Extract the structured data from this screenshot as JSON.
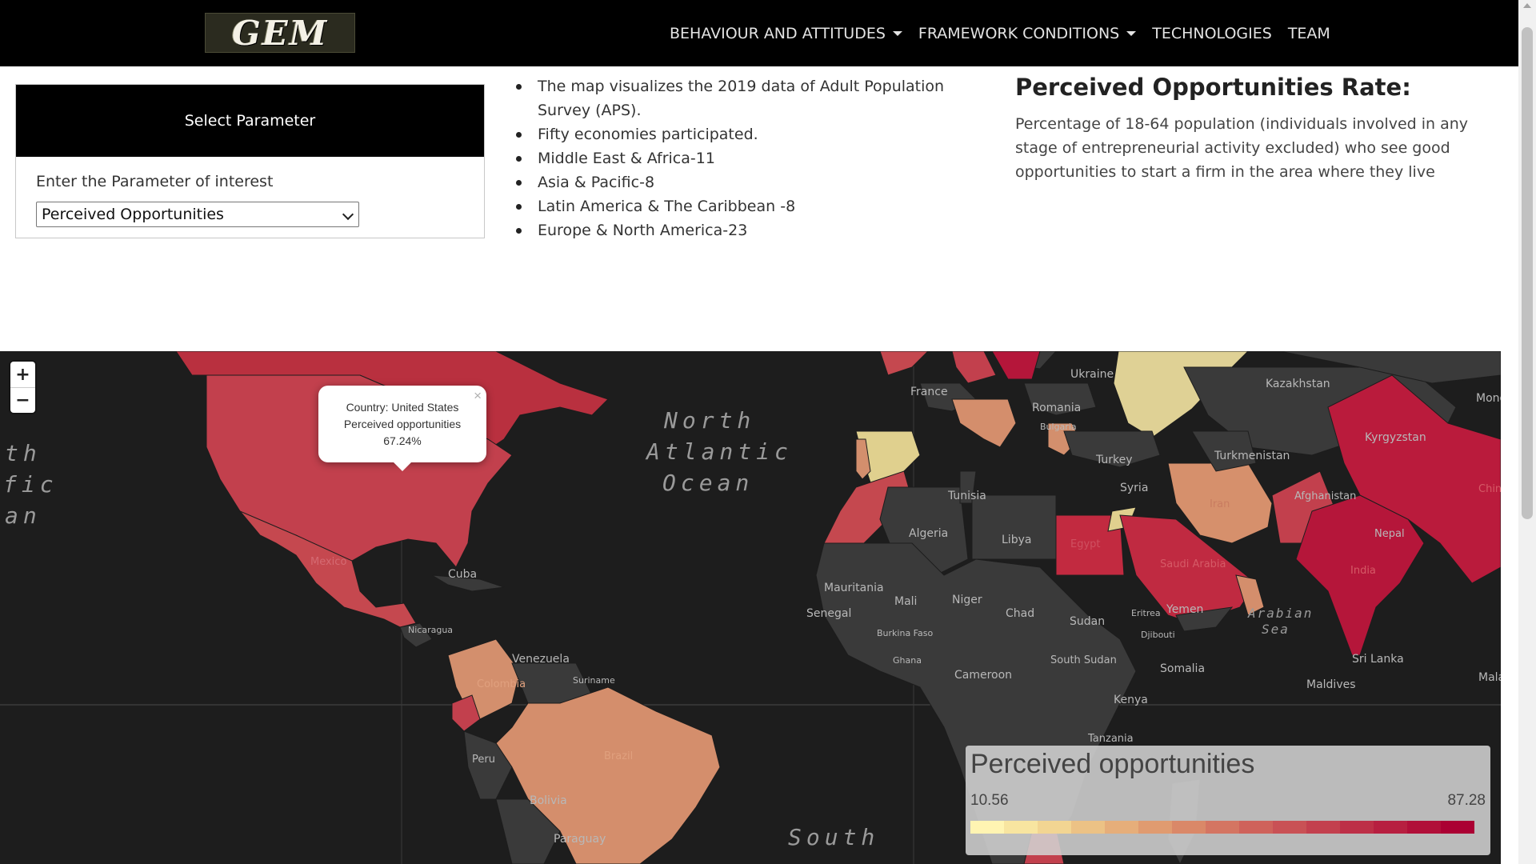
{
  "navbar": {
    "logo_text": "GEM",
    "items": [
      {
        "label": "BEHAVIOUR AND ATTITUDES",
        "dropdown": true
      },
      {
        "label": "FRAMEWORK CONDITIONS",
        "dropdown": true
      },
      {
        "label": "TECHNOLOGIES",
        "dropdown": false
      },
      {
        "label": "TEAM",
        "dropdown": false
      }
    ]
  },
  "param_card": {
    "header": "Select Parameter",
    "label": "Enter the Parameter of interest",
    "selected": "Perceived Opportunities"
  },
  "info": {
    "bullets": [
      "The map visualizes the 2019 data of Adult Population Survey (APS).",
      "Fifty economies participated.",
      "Middle East & Africa-11",
      "Asia & Pacific-8",
      "Latin America & The Caribbean -8",
      "Europe & North America-23"
    ]
  },
  "rate": {
    "title": "Perceived Opportunities Rate:",
    "description": "Percentage of 18-64 population (individuals involved in any stage of entrepreneurial activity excluded) who see good opportunities to start a firm in the area where they live"
  },
  "map": {
    "zoom_in": "+",
    "zoom_out": "−",
    "ocean_labels": [
      "North",
      "Atlantic",
      "Ocean",
      "South",
      "Arabian",
      "Sea",
      "th",
      "fic",
      "an"
    ],
    "country_labels": [
      "Ukraine",
      "Kazakhstan",
      "France",
      "Romania",
      "Bulgaria",
      "Turkey",
      "Turkmenistan",
      "Kyrgyzstan",
      "Afghanistan",
      "Syria",
      "Iran",
      "Tunisia",
      "Algeria",
      "Libya",
      "Egypt",
      "Saudi Arabia",
      "Yemen",
      "Mauritania",
      "Mali",
      "Niger",
      "Chad",
      "Sudan",
      "South Sudan",
      "Senegal",
      "Burkina Faso",
      "Ghana",
      "Cameroon",
      "Eritrea",
      "Djibouti",
      "Somalia",
      "Kenya",
      "Tanzania",
      "India",
      "Nepal",
      "Sri Lanka",
      "Maldives",
      "Mexico",
      "Cuba",
      "Nicaragua",
      "Venezuela",
      "Colombia",
      "Suriname",
      "Peru",
      "Brazil",
      "Bolivia",
      "Paraguay",
      "Mongolia",
      "China",
      "Malaysia"
    ],
    "popup": {
      "country_line": "Country: United States",
      "metric_line": "Perceived opportunities",
      "value_line": "67.24%",
      "close": "×"
    },
    "legend": {
      "title": "Perceived opportunities",
      "min": "10.56",
      "max": "87.28",
      "colors": [
        "#fff4b2",
        "#f8e5a0",
        "#f2d592",
        "#ecc285",
        "#e6ae7a",
        "#e09b70",
        "#da8868",
        "#d47562",
        "#cf625b",
        "#c95155",
        "#c3404e",
        "#bd2f47",
        "#b71f40",
        "#b10f39",
        "#ab0033"
      ]
    },
    "colors": {
      "ocean": "#1d1d1d",
      "land_default": "#3a3a3a",
      "usa": "#c2404d",
      "mexico": "#c5484f",
      "canada": "#b9303f",
      "india": "#b5163a",
      "china": "#ba1b3c",
      "russia": "#dfd195",
      "brazil": "#d48e6c",
      "colombia": "#d38f6d",
      "iran": "#d6906c",
      "spain": "#e0d08e",
      "saudi": "#c02a41",
      "egypt": "#c22a40"
    }
  }
}
